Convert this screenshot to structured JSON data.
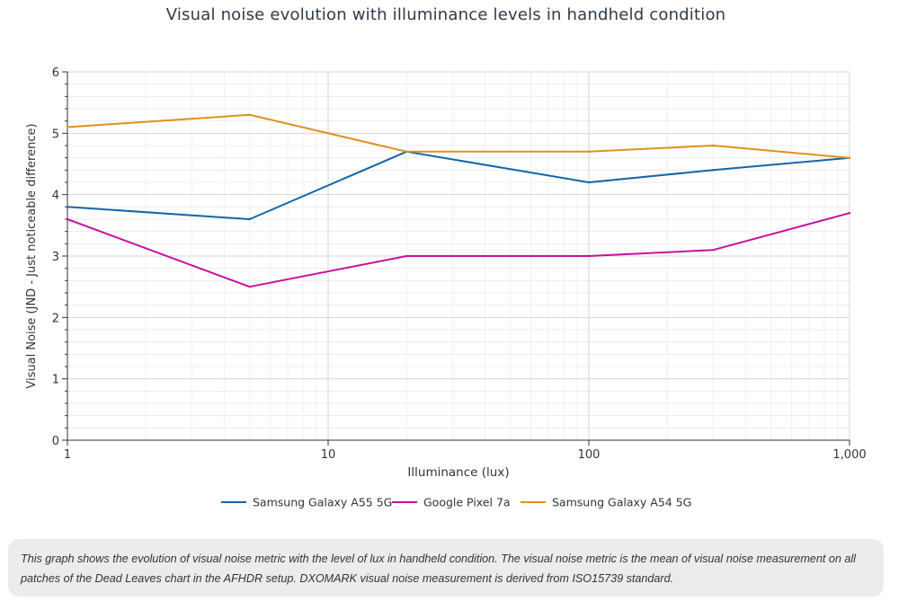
{
  "chart_data": {
    "type": "line",
    "title": "Visual noise evolution with illuminance levels in handheld condition",
    "xlabel": "Illuminance (lux)",
    "ylabel": "Visual Noise (JND - Just noticeable difference)",
    "xscale": "log",
    "xlim": [
      1,
      1000
    ],
    "ylim": [
      0,
      6
    ],
    "x_ticks": [
      {
        "value": 1,
        "label": "1"
      },
      {
        "value": 10,
        "label": "10"
      },
      {
        "value": 100,
        "label": "100"
      },
      {
        "value": 1000,
        "label": "1,000"
      }
    ],
    "y_ticks": [
      0,
      1,
      2,
      3,
      4,
      5,
      6
    ],
    "grid": true,
    "legend_position": "bottom",
    "x": [
      1,
      5,
      20,
      100,
      300,
      1000
    ],
    "series": [
      {
        "name": "Samsung Galaxy A55 5G",
        "color": "#1565a9",
        "values": [
          3.8,
          3.6,
          4.7,
          4.2,
          4.4,
          4.6
        ]
      },
      {
        "name": "Google Pixel 7a",
        "color": "#c8129a",
        "values": [
          3.6,
          2.5,
          3.0,
          3.0,
          3.1,
          3.7
        ]
      },
      {
        "name": "Samsung Galaxy A54 5G",
        "color": "#e0901c",
        "values": [
          5.1,
          5.3,
          4.7,
          4.7,
          4.8,
          4.6
        ]
      }
    ]
  },
  "note": {
    "text": "This graph shows the evolution of visual noise metric with the level of lux in handheld condition. The visual noise metric is the mean of visual noise measurement on all patches of the Dead Leaves chart in the AFHDR setup. DXOMARK visual noise measurement is derived from ISO15739 standard."
  }
}
